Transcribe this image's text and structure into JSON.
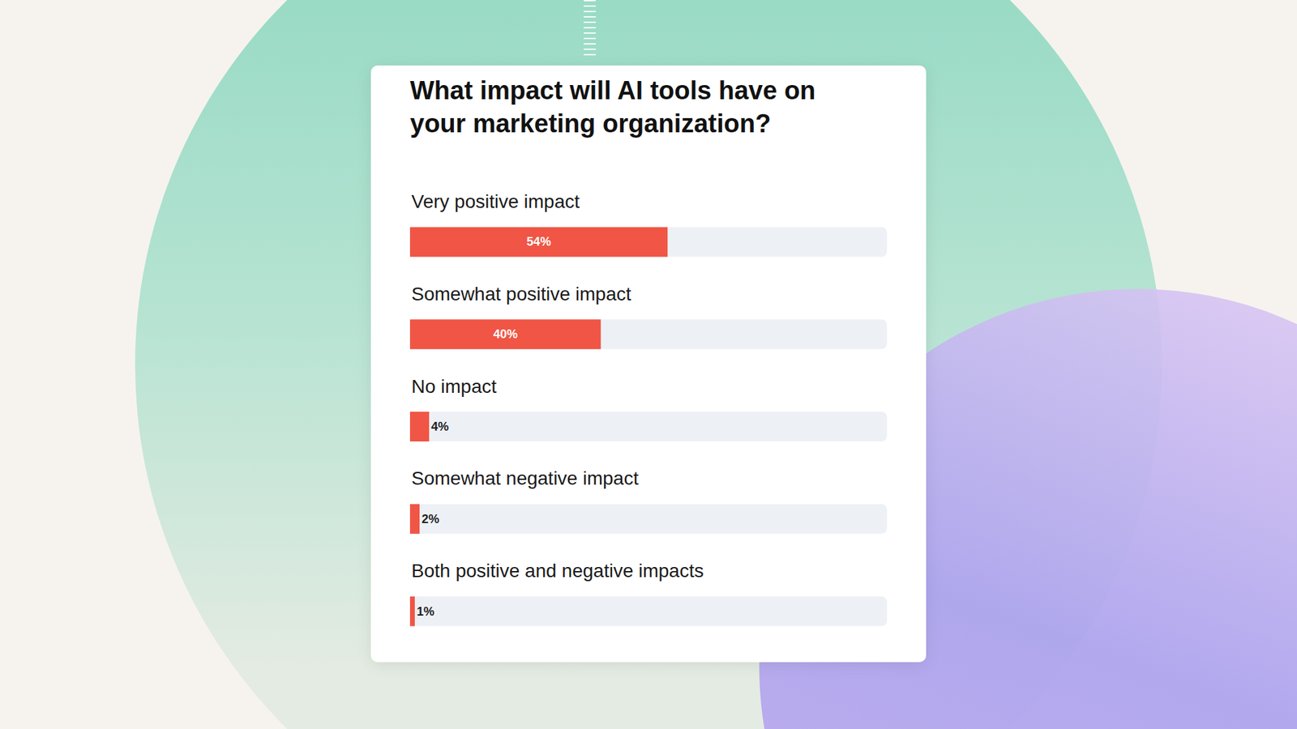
{
  "chart_data": {
    "type": "bar",
    "orientation": "horizontal",
    "title": "What impact will AI tools have on your marketing organization?",
    "categories": [
      "Very positive impact",
      "Somewhat positive impact",
      "No impact",
      "Somewhat negative impact",
      "Both positive and negative impacts"
    ],
    "values": [
      54,
      40,
      4,
      2,
      1
    ],
    "value_labels": [
      "54%",
      "40%",
      "4%",
      "2%",
      "1%"
    ],
    "color": "#f05545",
    "xlim": [
      0,
      100
    ],
    "data_labels": true,
    "tick_labels": "y",
    "grid": false
  }
}
